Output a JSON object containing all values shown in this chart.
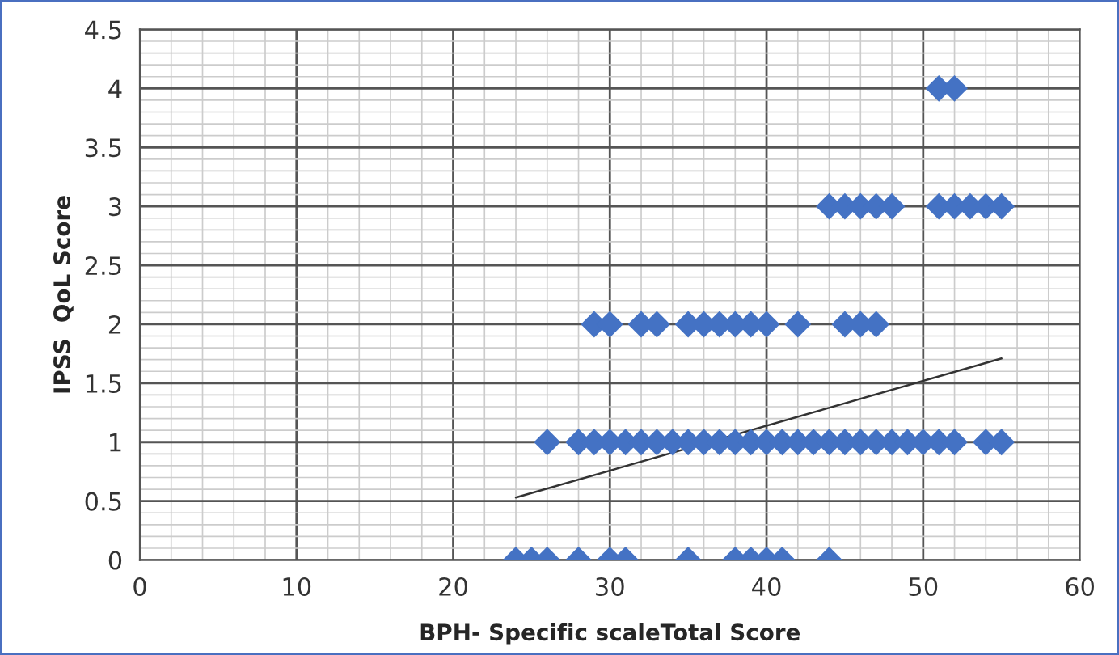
{
  "chart_data": {
    "type": "scatter",
    "xlabel": "BPH- Specific scaleTotal Score",
    "ylabel": "IPSS  QoL Score",
    "xlim": [
      0,
      60
    ],
    "xticks": [
      0,
      10,
      20,
      30,
      40,
      50,
      60
    ],
    "ylim": [
      0,
      4.5
    ],
    "yticks": [
      0,
      0.5,
      1,
      1.5,
      2,
      2.5,
      3,
      3.5,
      4,
      4.5
    ],
    "grid": true,
    "series": [
      {
        "marker": "diamond",
        "color": "#4472c4",
        "x": [
          51,
          52,
          44,
          45,
          46,
          47,
          48,
          51,
          52,
          53,
          54,
          55,
          29,
          30,
          32,
          33,
          35,
          36,
          37,
          38,
          39,
          40,
          42,
          45,
          46,
          47,
          26,
          28,
          29,
          30,
          31,
          32,
          33,
          34,
          35,
          36,
          37,
          38,
          39,
          40,
          41,
          42,
          43,
          44,
          45,
          46,
          47,
          48,
          49,
          50,
          51,
          52,
          54,
          55,
          24,
          25,
          26,
          28,
          30,
          31,
          35,
          38,
          39,
          40,
          41,
          44
        ],
        "values": [
          4,
          4,
          3,
          3,
          3,
          3,
          3,
          3,
          3,
          3,
          3,
          3,
          2,
          2,
          2,
          2,
          2,
          2,
          2,
          2,
          2,
          2,
          2,
          2,
          2,
          2,
          1,
          1,
          1,
          1,
          1,
          1,
          1,
          1,
          1,
          1,
          1,
          1,
          1,
          1,
          1,
          1,
          1,
          1,
          1,
          1,
          1,
          1,
          1,
          1,
          1,
          1,
          1,
          1,
          0,
          0,
          0,
          0,
          0,
          0,
          0,
          0,
          0,
          0,
          0,
          0
        ]
      },
      {
        "type": "line",
        "marker": "none",
        "color": "#333333",
        "x": [
          24,
          55
        ],
        "values": [
          0.53,
          1.71
        ]
      }
    ]
  }
}
